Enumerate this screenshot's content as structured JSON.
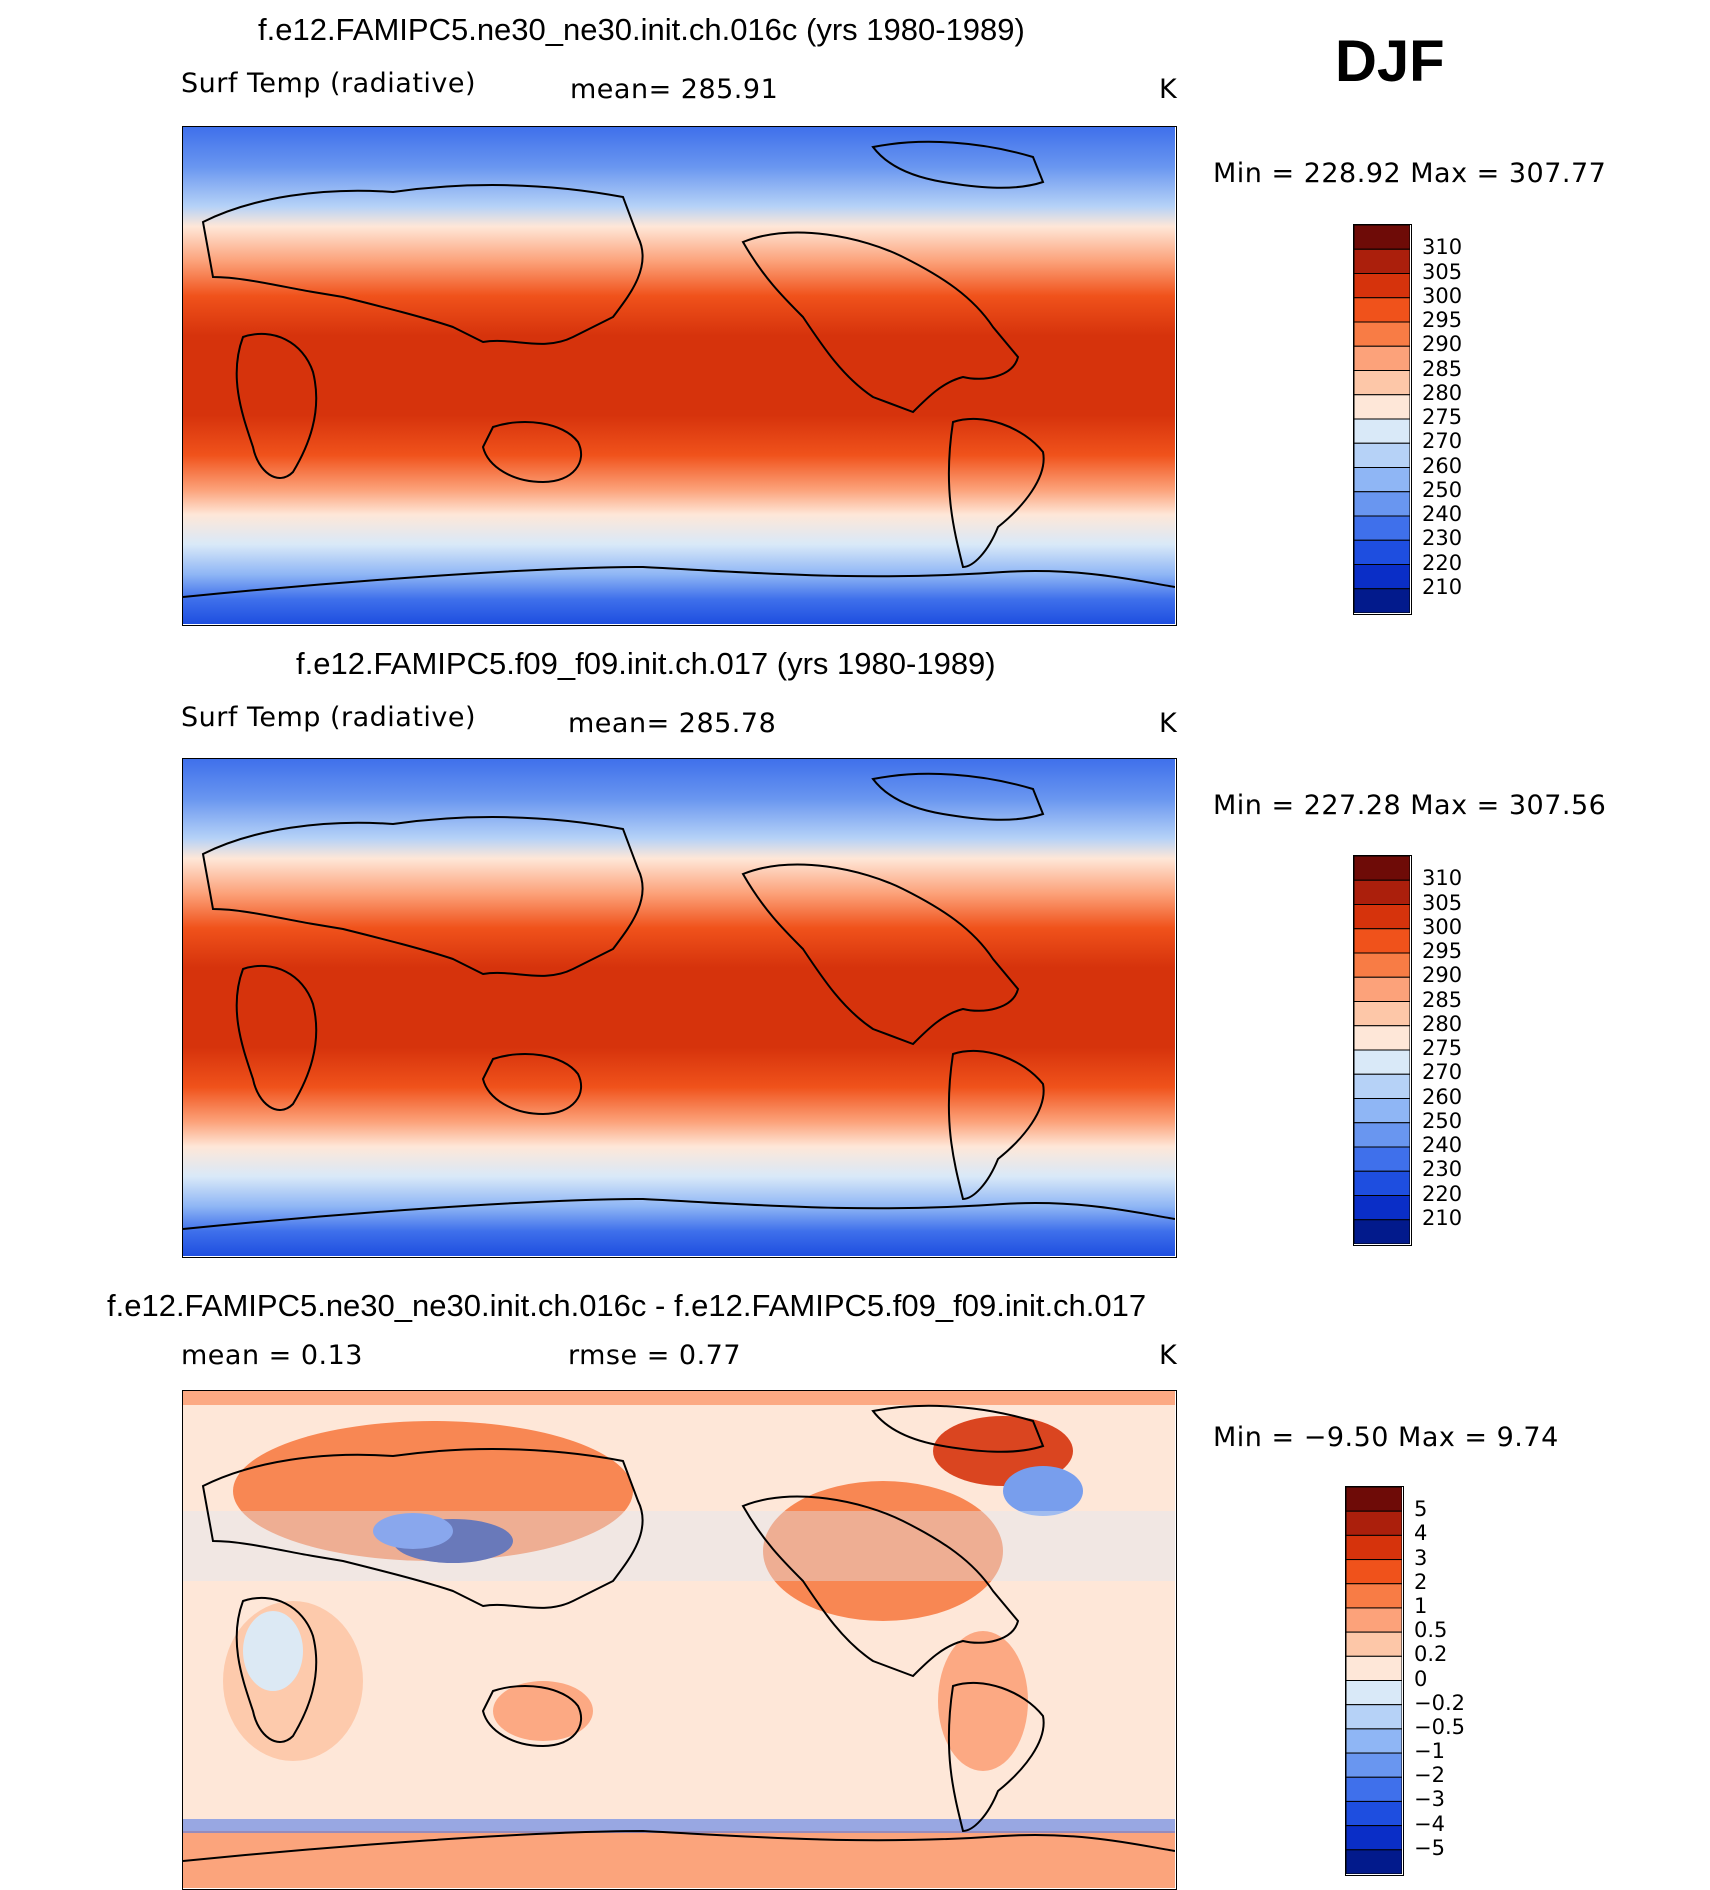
{
  "season": "DJF",
  "panels": [
    {
      "title": "f.e12.FAMIPC5.ne30_ne30.init.ch.016c (yrs 1980-1989)",
      "left_label": "Surf Temp (radiative)",
      "center_label": "mean=  285.91",
      "units": "K",
      "minmax": "Min  =  228.92  Max  =  307.77",
      "kind": "field"
    },
    {
      "title": "f.e12.FAMIPC5.f09_f09.init.ch.017 (yrs 1980-1989)",
      "left_label": "Surf Temp (radiative)",
      "center_label": "mean=  285.78",
      "units": "K",
      "minmax": "Min  =  227.28  Max  =  307.56",
      "kind": "field"
    },
    {
      "title": "f.e12.FAMIPC5.ne30_ne30.init.ch.016c - f.e12.FAMIPC5.f09_f09.init.ch.017",
      "left_label": "mean  =     0.13",
      "center_label": "rmse  =     0.77",
      "units": "K",
      "minmax": "Min  =    −9.50  Max  =      9.74",
      "kind": "diff"
    }
  ],
  "colorbar_field": {
    "labels": [
      "310",
      "305",
      "300",
      "295",
      "290",
      "285",
      "280",
      "275",
      "270",
      "260",
      "250",
      "240",
      "230",
      "220",
      "210"
    ],
    "colors": [
      "#6e0b07",
      "#ab1f0c",
      "#d6330c",
      "#f0521b",
      "#f87c45",
      "#fca27a",
      "#fdc7a8",
      "#fee7d8",
      "#d9e9f8",
      "#b6d2f7",
      "#8fb6f5",
      "#6996f0",
      "#3f70eb",
      "#1e4ee0",
      "#0a2ec7",
      "#021a8c"
    ]
  },
  "colorbar_diff": {
    "labels": [
      "5",
      "4",
      "3",
      "2",
      "1",
      "0.5",
      "0.2",
      "0",
      "−0.2",
      "−0.5",
      "−1",
      "−2",
      "−3",
      "−4",
      "−5"
    ],
    "colors": [
      "#6e0b07",
      "#ab1f0c",
      "#d6330c",
      "#f0521b",
      "#f87c45",
      "#fca27a",
      "#fdc7a8",
      "#fee7d8",
      "#d9e9f8",
      "#b6d2f7",
      "#8fb6f5",
      "#6996f0",
      "#3f70eb",
      "#1e4ee0",
      "#0a2ec7",
      "#021a8c"
    ]
  }
}
